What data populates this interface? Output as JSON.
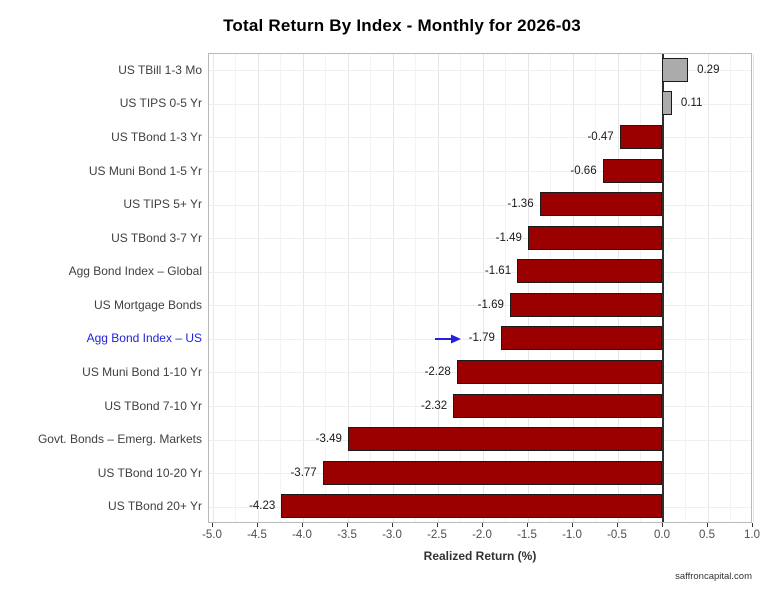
{
  "title": "Total Return By Index - Monthly for 2026-03",
  "watermark": "saffroncapital.com",
  "colors": {
    "positive_bar": "#ababab",
    "negative_bar": "#9b0000",
    "bar_border": "#1a1a1a",
    "highlight_blue": "#2222dd",
    "grid_minor": "#f3f3f3",
    "grid_major": "#e7e7e7",
    "zero_line": "#2e2e2e"
  },
  "chart_data": {
    "type": "bar",
    "orientation": "horizontal",
    "title": "Total Return By Index - Monthly for 2026-03",
    "xlabel": "Realized Return (%)",
    "ylabel": "",
    "xlim": [
      -5.05,
      1.0
    ],
    "grid": true,
    "categories": [
      "US TBill 1-3 Mo",
      "US TIPS 0-5 Yr",
      "US TBond 1-3 Yr",
      "US Muni Bond 1-5 Yr",
      "US TIPS 5+ Yr",
      "US TBond 3-7 Yr",
      "Agg Bond Index – Global",
      "US Mortgage Bonds",
      "Agg Bond Index – US",
      "US Muni Bond 1-10 Yr",
      "US TBond 7-10 Yr",
      "Govt. Bonds – Emerg. Markets",
      "US TBond 10-20 Yr",
      "US TBond 20+ Yr"
    ],
    "values": [
      0.29,
      0.11,
      -0.47,
      -0.66,
      -1.36,
      -1.49,
      -1.61,
      -1.69,
      -1.79,
      -2.28,
      -2.32,
      -3.49,
      -3.77,
      -4.23
    ],
    "rows": [
      {
        "label": "US TBill 1-3 Mo",
        "value": 0.29,
        "value_label": "0.29",
        "highlighted": false
      },
      {
        "label": "US TIPS 0-5 Yr",
        "value": 0.11,
        "value_label": "0.11",
        "highlighted": false
      },
      {
        "label": "US TBond 1-3 Yr",
        "value": -0.47,
        "value_label": "-0.47",
        "highlighted": false
      },
      {
        "label": "US Muni Bond 1-5 Yr",
        "value": -0.66,
        "value_label": "-0.66",
        "highlighted": false
      },
      {
        "label": "US TIPS 5+ Yr",
        "value": -1.36,
        "value_label": "-1.36",
        "highlighted": false
      },
      {
        "label": "US TBond 3-7 Yr",
        "value": -1.49,
        "value_label": "-1.49",
        "highlighted": false
      },
      {
        "label": "Agg Bond Index – Global",
        "value": -1.61,
        "value_label": "-1.61",
        "highlighted": false
      },
      {
        "label": "US Mortgage Bonds",
        "value": -1.69,
        "value_label": "-1.69",
        "highlighted": false
      },
      {
        "label": "Agg Bond Index – US",
        "value": -1.79,
        "value_label": "-1.79",
        "highlighted": true
      },
      {
        "label": "US Muni Bond 1-10 Yr",
        "value": -2.28,
        "value_label": "-2.28",
        "highlighted": false
      },
      {
        "label": "US TBond 7-10 Yr",
        "value": -2.32,
        "value_label": "-2.32",
        "highlighted": false
      },
      {
        "label": "Govt. Bonds – Emerg. Markets",
        "value": -3.49,
        "value_label": "-3.49",
        "highlighted": false
      },
      {
        "label": "US TBond 10-20 Yr",
        "value": -3.77,
        "value_label": "-3.77",
        "highlighted": false
      },
      {
        "label": "US TBond 20+ Yr",
        "value": -4.23,
        "value_label": "-4.23",
        "highlighted": false
      }
    ],
    "xticks": [
      -5.0,
      -4.5,
      -4.0,
      -3.5,
      -3.0,
      -2.5,
      -2.0,
      -1.5,
      -1.0,
      -0.5,
      0.0,
      0.5,
      1.0
    ],
    "xtick_labels": [
      "-5.0",
      "-4.5",
      "-4.0",
      "-3.5",
      "-3.0",
      "-2.5",
      "-2.0",
      "-1.5",
      "-1.0",
      "-0.5",
      "0.0",
      "0.5",
      "1.0"
    ],
    "legend": "none",
    "annotation": {
      "type": "arrow",
      "target_row": "Agg Bond Index – US",
      "direction": "right"
    }
  }
}
